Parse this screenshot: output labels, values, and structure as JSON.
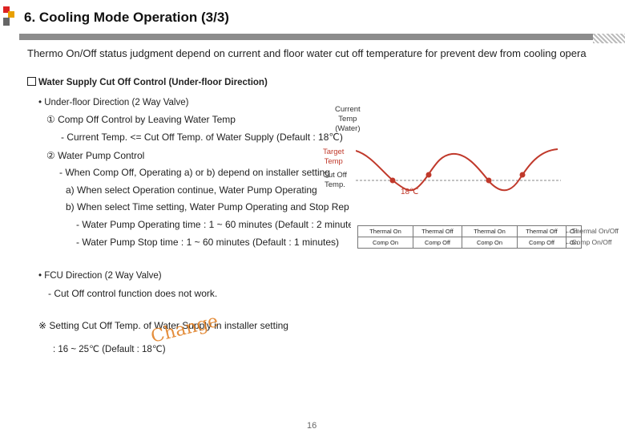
{
  "header": {
    "title": "6. Cooling Mode Operation (3/3)"
  },
  "intro": "Thermo On/Off status judgment depend on current and floor water cut off temperature for prevent dew from cooling opera",
  "section_title": "Water Supply Cut Off Control (Under-floor Direction)",
  "underfloor": {
    "heading": "• Under-floor Direction (2 Way Valve)",
    "item1": "① Comp Off Control by Leaving Water Temp",
    "item1_detail": "- Current Temp. <= Cut Off Temp. of Water Supply (Default : 18℃)",
    "item2": "② Water Pump Control",
    "item2_detail": "- When Comp Off, Operating a) or b) depend on installer setting",
    "option_a": "a) When select Operation continue, Water Pump Operating",
    "option_b": "b) When select Time setting, Water Pump Operating and Stop Rep",
    "pump_on": "- Water Pump Operating time : 1 ~ 60 minutes (Default : 2 minute",
    "pump_off": "- Water Pump Stop time : 1 ~ 60 minutes (Default : 1 minutes)"
  },
  "fcu": {
    "heading": "• FCU Direction (2 Way Valve)",
    "detail": "- Cut Off control function does not work."
  },
  "setting": {
    "note": "※ Setting Cut Off Temp. of Water Supply in installer setting",
    "range": ": 16 ~ 25℃ (Default : 18℃)",
    "watermark": "Change"
  },
  "diagram": {
    "label_current_1": "Current",
    "label_current_2": "Temp",
    "label_current_3": "(Water)",
    "label_target_1": "Target",
    "label_target_2": "Temp",
    "label_cutoff_1": "Cut Off",
    "label_cutoff_2": "Temp.",
    "label_18": "18℃",
    "line_color": "#c0392b",
    "thermal_row": [
      "Thermal On",
      "Thermal Off",
      "Thermal On",
      "Thermal Off",
      "On"
    ],
    "comp_row": [
      "Comp On",
      "Comp Off",
      "Comp On",
      "Comp Off",
      "On"
    ],
    "thermal_caption": "←Thermal On/Off",
    "comp_caption": "←Comp On/Off"
  },
  "footer": {
    "page_number": "16"
  }
}
